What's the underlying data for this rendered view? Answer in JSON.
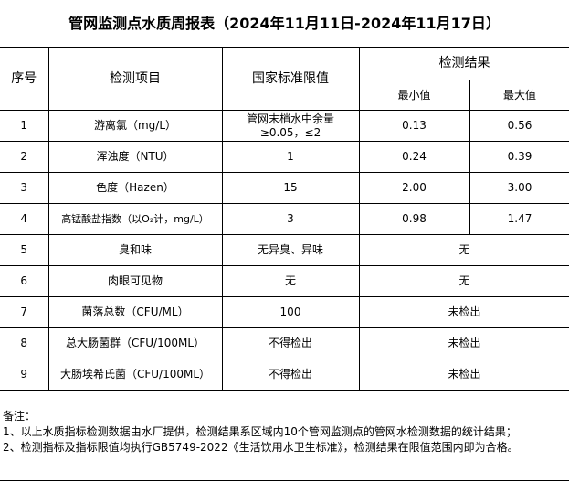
{
  "title": "管网监测点水质周报表（2024年11月11日-2024年11月17日）",
  "headers": {
    "no": "序号",
    "item": "检测项目",
    "standard": "国家标准限值",
    "result": "检测结果",
    "min": "最小值",
    "max": "最大值"
  },
  "rows": [
    {
      "no": "1",
      "item": "游离氯（mg/L）",
      "standard": "管网末梢水中余量≥0.05，≤2",
      "min": "0.13",
      "max": "0.56"
    },
    {
      "no": "2",
      "item": "浑浊度（NTU）",
      "standard": "1",
      "min": "0.24",
      "max": "0.39"
    },
    {
      "no": "3",
      "item": "色度（Hazen）",
      "standard": "15",
      "min": "2.00",
      "max": "3.00"
    },
    {
      "no": "4",
      "item": "高锰酸盐指数（以O₂计，mg/L）",
      "standard": "3",
      "min": "0.98",
      "max": "1.47"
    }
  ],
  "rows_merged": [
    {
      "no": "5",
      "item": "臭和味",
      "standard": "无异臭、异味",
      "result": "无"
    },
    {
      "no": "6",
      "item": "肉眼可见物",
      "standard": "无",
      "result": "无"
    },
    {
      "no": "7",
      "item": "菌落总数（CFU/ML）",
      "standard": "100",
      "result": "未检出"
    },
    {
      "no": "8",
      "item": "总大肠菌群（CFU/100ML）",
      "standard": "不得检出",
      "result": "未检出"
    },
    {
      "no": "9",
      "item": "大肠埃希氏菌（CFU/100ML）",
      "standard": "不得检出",
      "result": "未检出"
    }
  ],
  "notes": {
    "label": "备注：",
    "lines": [
      "1、以上水质指标检测数据由水厂提供，检测结果系区域内10个管网监测点的管网水检测数据的统计结果；",
      "2、检测指标及指标限值均执行GB5749-2022《生活饮用水卫生标准》，检测结果在限值范围内即为合格。"
    ]
  }
}
